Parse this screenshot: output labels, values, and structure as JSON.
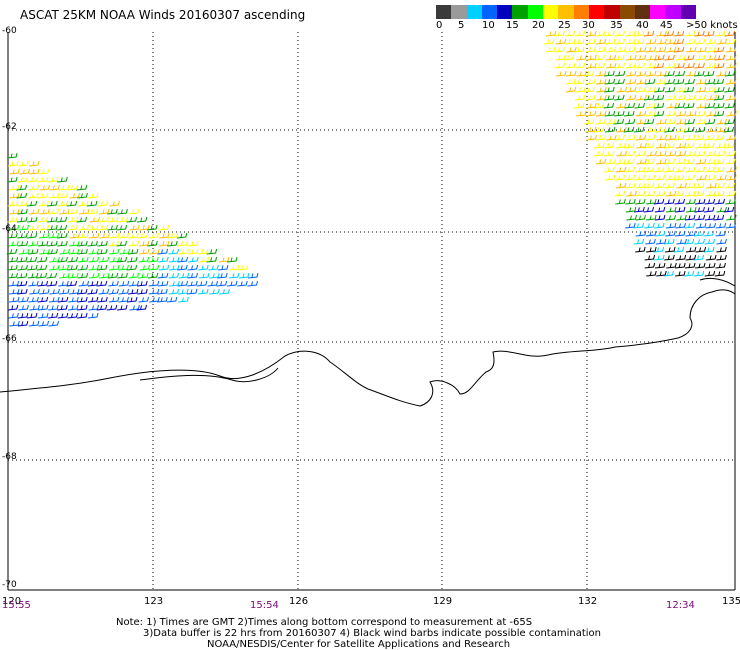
{
  "title": "ASCAT 25KM NOAA Winds 20160307 ascending",
  "colorbar": {
    "colors": [
      "#3a3a3a",
      "#9a9a9a",
      "#00d0ff",
      "#0064ff",
      "#0000c0",
      "#00a000",
      "#00ff00",
      "#ffff00",
      "#ffc000",
      "#ff8000",
      "#ff0000",
      "#c00000",
      "#8a4a00",
      "#603010",
      "#ff00ff",
      "#c000ff",
      "#6000b0"
    ],
    "labels": [
      "0",
      "5",
      "10",
      "15",
      "20",
      "25",
      "30",
      "35",
      "40",
      "45",
      ">50 knots"
    ]
  },
  "axes": {
    "y_labels": [
      "-60",
      "-62",
      "-64",
      "-66",
      "-68",
      "-70"
    ],
    "x_labels": [
      "120",
      "123",
      "126",
      "129",
      "132",
      "135"
    ],
    "time_labels": [
      "15:55",
      "15:54",
      "12:34"
    ]
  },
  "notes": [
    "Note: 1) Times are GMT 2)Times along bottom correspond to measurement at -65S",
    "3)Data buffer is 22 hrs from 20160307 4) Black wind barbs indicate possible contamination",
    "NOAA/NESDIS/Center for Satellite Applications and Research"
  ]
}
